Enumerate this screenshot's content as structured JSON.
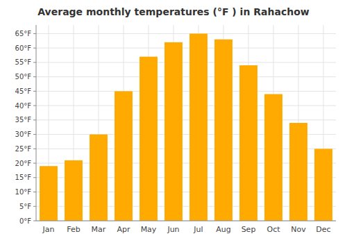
{
  "chart_data": {
    "type": "bar",
    "title": "Average monthly temperatures (°F ) in Rahachow",
    "categories": [
      "Jan",
      "Feb",
      "Mar",
      "Apr",
      "May",
      "Jun",
      "Jul",
      "Aug",
      "Sep",
      "Oct",
      "Nov",
      "Dec"
    ],
    "values": [
      19,
      21,
      30,
      45,
      57,
      62,
      65,
      63,
      54,
      44,
      34,
      25
    ],
    "color": "#FFAA00",
    "ylim": [
      0,
      68
    ],
    "yticks": [
      {
        "value": 0,
        "label": "0°F"
      },
      {
        "value": 5,
        "label": "5°F"
      },
      {
        "value": 10,
        "label": "10°F"
      },
      {
        "value": 15,
        "label": "15°F"
      },
      {
        "value": 20,
        "label": "20°F"
      },
      {
        "value": 25,
        "label": "25°F"
      },
      {
        "value": 30,
        "label": "30°F"
      },
      {
        "value": 35,
        "label": "35°F"
      },
      {
        "value": 40,
        "label": "40°F"
      },
      {
        "value": 45,
        "label": "45°F"
      },
      {
        "value": 50,
        "label": "50°F"
      },
      {
        "value": 55,
        "label": "55°F"
      },
      {
        "value": 60,
        "label": "60°F"
      },
      {
        "value": 65,
        "label": "65°F"
      }
    ],
    "grid": true
  }
}
